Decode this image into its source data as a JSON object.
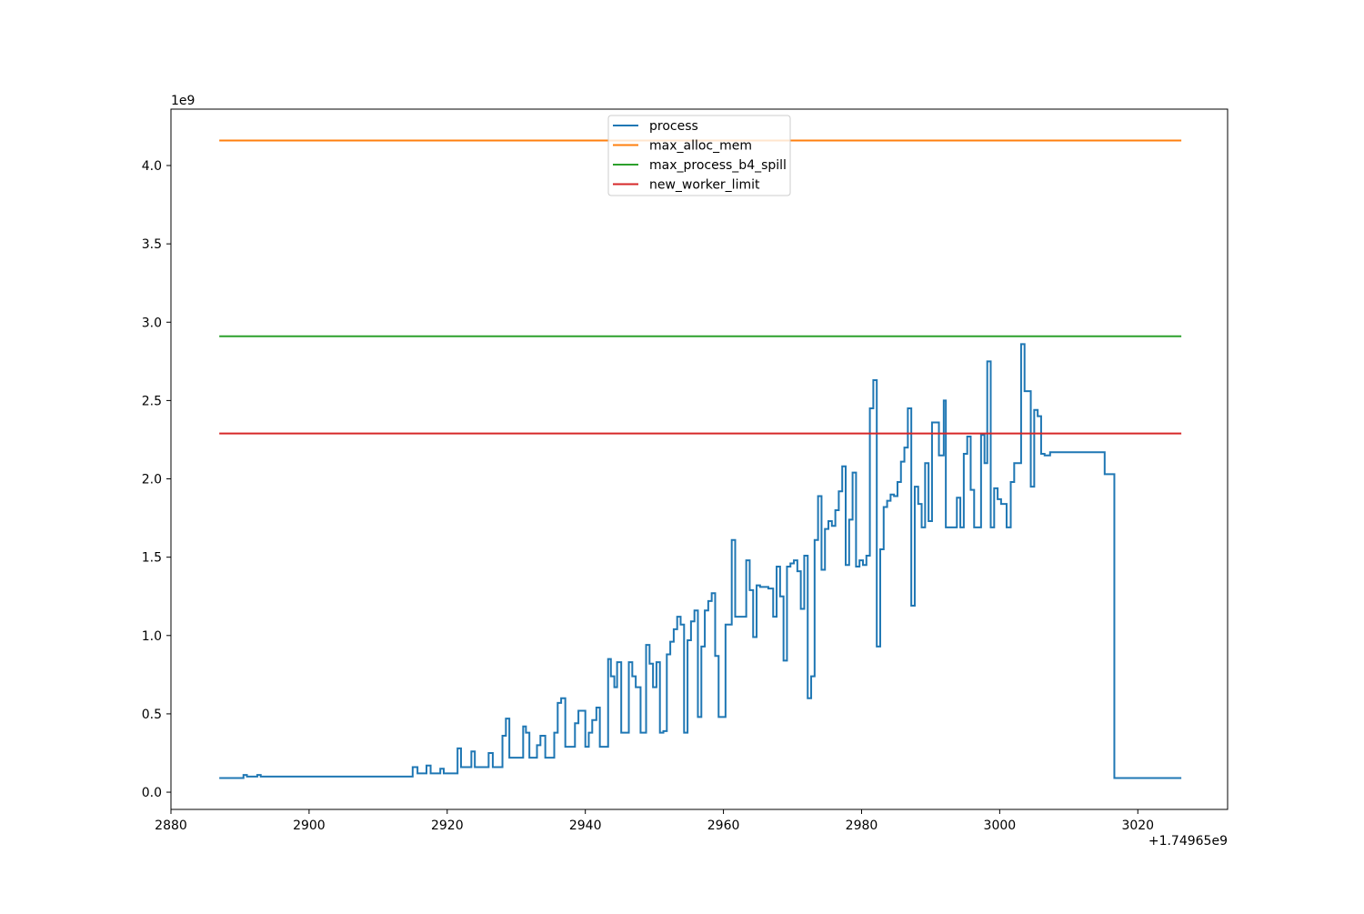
{
  "chart_data": {
    "type": "line",
    "title": "",
    "xlabel": "",
    "ylabel": "",
    "x_offset_label": "+1.74965e9",
    "y_scale_label": "1e9",
    "xlim": [
      2880,
      3033
    ],
    "ylim": [
      -0.11,
      4.36
    ],
    "xticks": [
      2880,
      2900,
      2920,
      2940,
      2960,
      2980,
      3000,
      3020
    ],
    "xtick_labels": [
      "2880",
      "2900",
      "2920",
      "2940",
      "2960",
      "2980",
      "3000",
      "3020"
    ],
    "yticks": [
      0.0,
      0.5,
      1.0,
      1.5,
      2.0,
      2.5,
      3.0,
      3.5,
      4.0
    ],
    "ytick_labels": [
      "0.0",
      "0.5",
      "1.0",
      "1.5",
      "2.0",
      "2.5",
      "3.0",
      "3.5",
      "4.0"
    ],
    "grid": false,
    "legend_position": "top-center",
    "series": [
      {
        "name": "process",
        "color": "#1f77b4",
        "step": true,
        "x": [
          2887,
          2890.5,
          2891,
          2892.5,
          2893,
          2911,
          2915,
          2915.7,
          2917,
          2917.6,
          2919,
          2919.5,
          2921.5,
          2922,
          2923.5,
          2924,
          2926,
          2926.6,
          2928,
          2928.5,
          2929,
          2929.6,
          2931,
          2931.4,
          2931.9,
          2932.5,
          2933,
          2933.5,
          2934.2,
          2935.5,
          2936,
          2936.5,
          2937.1,
          2938,
          2938.5,
          2939,
          2940,
          2940.5,
          2941,
          2941.6,
          2942.1,
          2943.3,
          2943.7,
          2944.2,
          2944.6,
          2945.2,
          2946.3,
          2946.8,
          2947.3,
          2948,
          2948.8,
          2949.3,
          2949.8,
          2950.3,
          2950.8,
          2951.3,
          2951.8,
          2952.3,
          2952.8,
          2953.3,
          2953.8,
          2954.3,
          2954.8,
          2955.3,
          2955.8,
          2956.3,
          2956.8,
          2957.3,
          2957.8,
          2958.3,
          2958.8,
          2959.3,
          2959.8,
          2960.3,
          2961.2,
          2961.7,
          2962.2,
          2963.3,
          2963.8,
          2964.3,
          2964.8,
          2965.3,
          2966.5,
          2967.2,
          2967.7,
          2968.2,
          2968.7,
          2969.2,
          2969.7,
          2970.2,
          2970.7,
          2971.2,
          2971.7,
          2972.2,
          2972.7,
          2973.2,
          2973.7,
          2974.2,
          2974.7,
          2975.2,
          2975.7,
          2976.2,
          2976.7,
          2977.2,
          2977.7,
          2978.2,
          2978.7,
          2979.2,
          2979.7,
          2980.2,
          2980.7,
          2981.2,
          2981.7,
          2982.2,
          2982.7,
          2983.2,
          2983.7,
          2984.2,
          2984.7,
          2985.2,
          2985.7,
          2986.2,
          2986.7,
          2987.2,
          2987.7,
          2988.2,
          2988.7,
          2989.2,
          2989.7,
          2990.2,
          2991.2,
          2991.9,
          2992.2,
          2993.8,
          2994.3,
          2994.8,
          2995.3,
          2995.8,
          2996.3,
          2997.3,
          2997.8,
          2998.2,
          2998.7,
          2999.2,
          2999.7,
          3000.2,
          3001,
          3001.6,
          3002.1,
          3002.6,
          3003.1,
          3003.6,
          3004.5,
          3005,
          3005.5,
          3006,
          3006.5,
          3007.3,
          3008.3,
          3015.2,
          3016.6,
          3026.3
        ],
        "y": [
          0.09,
          0.11,
          0.1,
          0.11,
          0.1,
          0.1,
          0.16,
          0.12,
          0.17,
          0.12,
          0.15,
          0.12,
          0.28,
          0.16,
          0.26,
          0.16,
          0.25,
          0.16,
          0.36,
          0.47,
          0.22,
          0.22,
          0.42,
          0.38,
          0.22,
          0.22,
          0.3,
          0.36,
          0.22,
          0.38,
          0.57,
          0.6,
          0.29,
          0.29,
          0.44,
          0.52,
          0.29,
          0.38,
          0.46,
          0.54,
          0.29,
          0.85,
          0.74,
          0.67,
          0.83,
          0.38,
          0.83,
          0.74,
          0.67,
          0.38,
          0.94,
          0.82,
          0.67,
          0.83,
          0.38,
          0.39,
          0.88,
          0.96,
          1.04,
          1.12,
          1.07,
          0.38,
          0.97,
          1.09,
          1.16,
          0.48,
          0.93,
          1.16,
          1.22,
          1.27,
          0.87,
          0.48,
          0.48,
          1.07,
          1.61,
          1.12,
          1.12,
          1.48,
          1.29,
          0.99,
          1.32,
          1.31,
          1.3,
          1.12,
          1.44,
          1.25,
          0.84,
          1.44,
          1.46,
          1.48,
          1.41,
          1.17,
          1.51,
          0.6,
          0.74,
          1.61,
          1.89,
          1.42,
          1.68,
          1.73,
          1.7,
          1.8,
          1.92,
          2.08,
          1.45,
          1.74,
          2.04,
          1.44,
          1.48,
          1.45,
          1.51,
          2.45,
          2.63,
          0.93,
          1.55,
          1.82,
          1.86,
          1.9,
          1.89,
          1.98,
          2.11,
          2.2,
          2.45,
          1.19,
          1.95,
          1.84,
          1.69,
          2.1,
          1.73,
          2.36,
          2.15,
          2.5,
          1.69,
          1.88,
          1.69,
          2.16,
          2.27,
          1.93,
          1.69,
          2.28,
          2.1,
          2.75,
          1.69,
          1.94,
          1.87,
          1.84,
          1.69,
          1.98,
          2.1,
          2.1,
          2.86,
          2.56,
          1.95,
          2.44,
          2.4,
          2.16,
          2.15,
          2.17,
          2.17,
          2.03,
          0.09,
          0.09
        ]
      },
      {
        "name": "max_alloc_mem",
        "color": "#ff7f0e",
        "x": [
          2887,
          3026.3
        ],
        "y": [
          4.16,
          4.16
        ]
      },
      {
        "name": "max_process_b4_spill",
        "color": "#2ca02c",
        "x": [
          2887,
          3026.3
        ],
        "y": [
          2.91,
          2.91
        ]
      },
      {
        "name": "new_worker_limit",
        "color": "#d62728",
        "x": [
          2887,
          3026.3
        ],
        "y": [
          2.29,
          2.29
        ]
      }
    ]
  }
}
